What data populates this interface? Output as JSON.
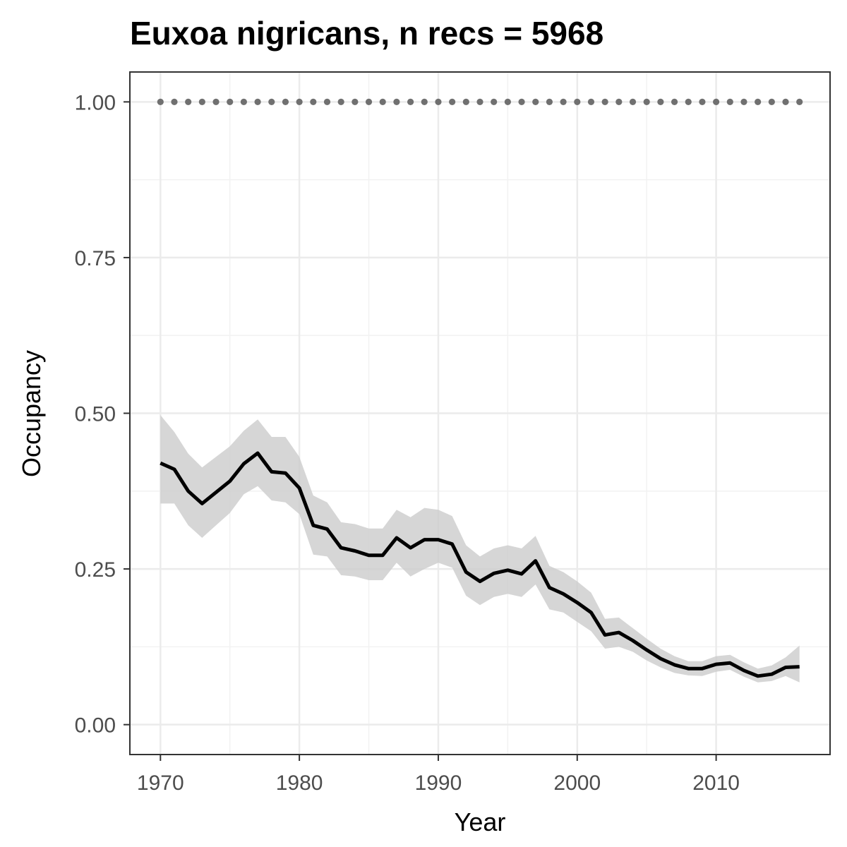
{
  "chart_data": {
    "type": "line",
    "title": "Euxoa nigricans, n recs = 5968",
    "xlabel": "Year",
    "ylabel": "Occupancy",
    "xlim": [
      1967.8,
      2018.2
    ],
    "ylim": [
      -0.048,
      1.048
    ],
    "x_ticks": [
      1970,
      1980,
      1990,
      2000,
      2010
    ],
    "x_tick_labels": [
      "1970",
      "1980",
      "1990",
      "2000",
      "2010"
    ],
    "y_ticks": [
      0,
      0.25,
      0.5,
      0.75,
      1.0
    ],
    "y_tick_labels": [
      "0.00",
      "0.25",
      "0.50",
      "0.75",
      "1.00"
    ],
    "grid": true,
    "years": [
      1970,
      1971,
      1972,
      1973,
      1974,
      1975,
      1976,
      1977,
      1978,
      1979,
      1980,
      1981,
      1982,
      1983,
      1984,
      1985,
      1986,
      1987,
      1988,
      1989,
      1990,
      1991,
      1992,
      1993,
      1994,
      1995,
      1996,
      1997,
      1998,
      1999,
      2000,
      2001,
      2002,
      2003,
      2004,
      2005,
      2006,
      2007,
      2008,
      2009,
      2010,
      2011,
      2012,
      2013,
      2014,
      2015,
      2016
    ],
    "series": [
      {
        "role": "mean",
        "color": "#000000",
        "values": [
          0.42,
          0.41,
          0.375,
          0.355,
          0.373,
          0.391,
          0.419,
          0.436,
          0.406,
          0.404,
          0.38,
          0.32,
          0.314,
          0.284,
          0.279,
          0.272,
          0.272,
          0.3,
          0.284,
          0.297,
          0.297,
          0.29,
          0.245,
          0.23,
          0.243,
          0.248,
          0.242,
          0.263,
          0.22,
          0.21,
          0.196,
          0.18,
          0.144,
          0.148,
          0.135,
          0.12,
          0.106,
          0.096,
          0.09,
          0.09,
          0.097,
          0.099,
          0.087,
          0.078,
          0.081,
          0.092,
          0.093
        ]
      },
      {
        "role": "ci-lower",
        "color": "#cccccc",
        "values": [
          0.355,
          0.355,
          0.32,
          0.3,
          0.32,
          0.34,
          0.37,
          0.383,
          0.36,
          0.357,
          0.338,
          0.273,
          0.27,
          0.24,
          0.238,
          0.232,
          0.232,
          0.26,
          0.238,
          0.25,
          0.26,
          0.252,
          0.207,
          0.192,
          0.205,
          0.21,
          0.205,
          0.225,
          0.185,
          0.18,
          0.165,
          0.15,
          0.122,
          0.125,
          0.117,
          0.103,
          0.092,
          0.083,
          0.079,
          0.078,
          0.085,
          0.088,
          0.077,
          0.068,
          0.07,
          0.078,
          0.068
        ]
      },
      {
        "role": "ci-upper",
        "color": "#cccccc",
        "values": [
          0.497,
          0.47,
          0.435,
          0.413,
          0.43,
          0.447,
          0.472,
          0.49,
          0.462,
          0.462,
          0.43,
          0.368,
          0.357,
          0.325,
          0.322,
          0.315,
          0.315,
          0.345,
          0.333,
          0.348,
          0.345,
          0.335,
          0.288,
          0.27,
          0.283,
          0.288,
          0.283,
          0.303,
          0.255,
          0.245,
          0.23,
          0.212,
          0.17,
          0.172,
          0.155,
          0.138,
          0.122,
          0.11,
          0.102,
          0.102,
          0.11,
          0.112,
          0.1,
          0.09,
          0.095,
          0.108,
          0.127
        ]
      },
      {
        "role": "reference",
        "color": "#707070",
        "values": [
          1,
          1,
          1,
          1,
          1,
          1,
          1,
          1,
          1,
          1,
          1,
          1,
          1,
          1,
          1,
          1,
          1,
          1,
          1,
          1,
          1,
          1,
          1,
          1,
          1,
          1,
          1,
          1,
          1,
          1,
          1,
          1,
          1,
          1,
          1,
          1,
          1,
          1,
          1,
          1,
          1,
          1,
          1,
          1,
          1,
          1,
          1
        ]
      }
    ]
  }
}
